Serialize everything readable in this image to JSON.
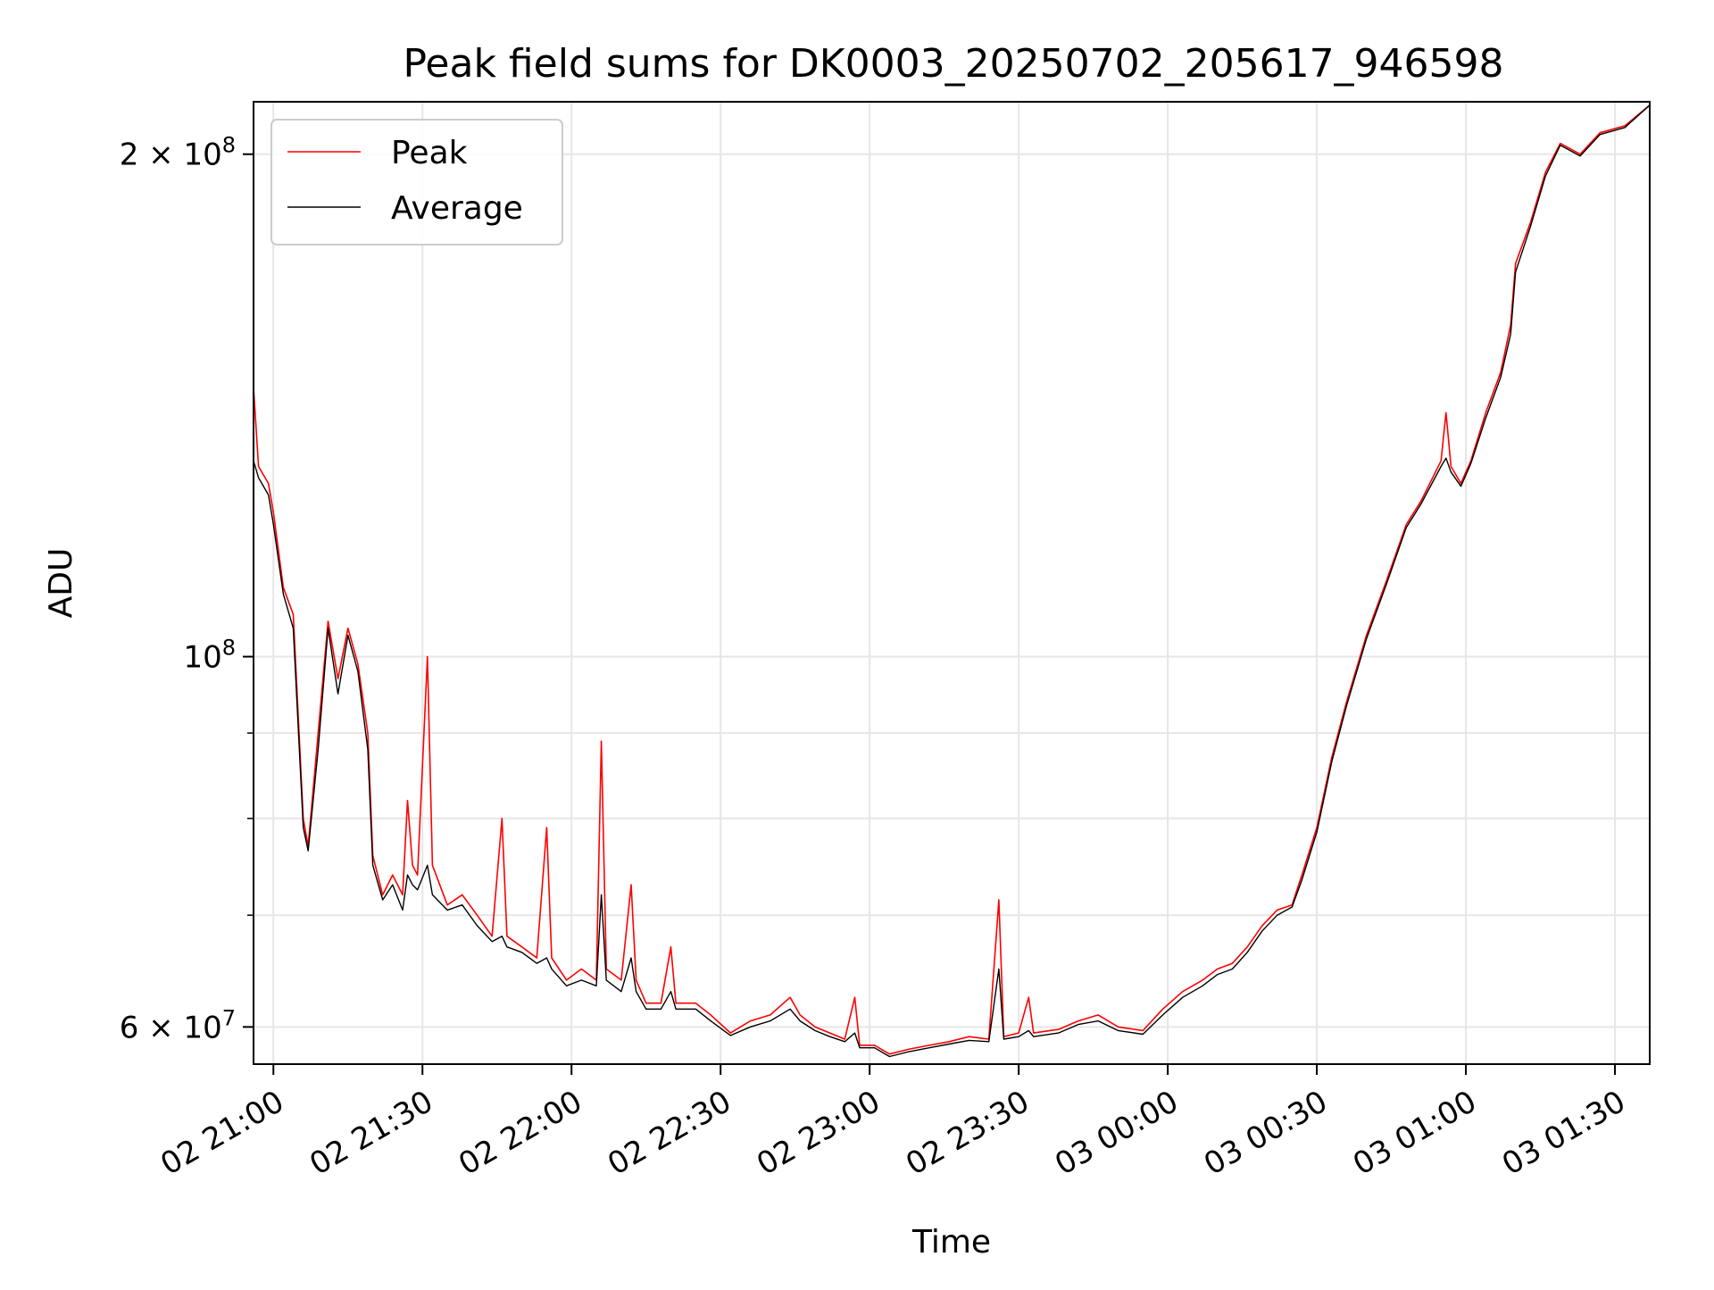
{
  "chart_data": {
    "type": "line",
    "title": "Peak field sums for DK0003_20250702_205617_946598",
    "xlabel": "Time",
    "ylabel": "ADU",
    "yscale": "log",
    "grid": true,
    "legend_position": "top-left",
    "xlim": [
      "2025-07-02 20:56",
      "2025-07-03 01:37"
    ],
    "ylim": [
      57000000,
      215000000
    ],
    "x_ticks": [
      {
        "value": "2025-07-02 21:00",
        "label": "02 21:00"
      },
      {
        "value": "2025-07-02 21:30",
        "label": "02 21:30"
      },
      {
        "value": "2025-07-02 22:00",
        "label": "02 22:00"
      },
      {
        "value": "2025-07-02 22:30",
        "label": "02 22:30"
      },
      {
        "value": "2025-07-02 23:00",
        "label": "02 23:00"
      },
      {
        "value": "2025-07-02 23:30",
        "label": "02 23:30"
      },
      {
        "value": "2025-07-03 00:00",
        "label": "03 00:00"
      },
      {
        "value": "2025-07-03 00:30",
        "label": "03 00:30"
      },
      {
        "value": "2025-07-03 01:00",
        "label": "03 01:00"
      },
      {
        "value": "2025-07-03 01:30",
        "label": "03 01:30"
      }
    ],
    "y_ticks_major": [
      {
        "value": 60000000,
        "mantissa": "6",
        "label": "6 × 10^7"
      },
      {
        "value": 100000000,
        "mantissa": "",
        "label": "10^8"
      },
      {
        "value": 200000000,
        "mantissa": "2",
        "label": "2 × 10^8"
      }
    ],
    "y_ticks_base": "10",
    "y_ticks_major_exponents": [
      "7",
      "8",
      "8"
    ],
    "y_ticks_times": "×",
    "y_ticks_minor": [
      70000000,
      80000000,
      90000000
    ],
    "series": [
      {
        "name": "Peak",
        "color": "#ff0000",
        "points": [
          [
            "2025-07-02 20:56",
            145000000
          ],
          [
            "2025-07-02 20:57",
            130000000
          ],
          [
            "2025-07-02 20:59",
            127000000
          ],
          [
            "2025-07-02 21:00",
            122000000
          ],
          [
            "2025-07-02 21:02",
            110000000
          ],
          [
            "2025-07-02 21:04",
            106000000
          ],
          [
            "2025-07-02 21:06",
            80000000
          ],
          [
            "2025-07-02 21:07",
            77000000
          ],
          [
            "2025-07-02 21:09",
            90000000
          ],
          [
            "2025-07-02 21:11",
            105000000
          ],
          [
            "2025-07-02 21:13",
            97000000
          ],
          [
            "2025-07-02 21:15",
            104000000
          ],
          [
            "2025-07-02 21:17",
            99000000
          ],
          [
            "2025-07-02 21:19",
            90000000
          ],
          [
            "2025-07-02 21:20",
            76000000
          ],
          [
            "2025-07-02 21:22",
            72000000
          ],
          [
            "2025-07-02 21:24",
            74000000
          ],
          [
            "2025-07-02 21:26",
            72000000
          ],
          [
            "2025-07-02 21:27",
            82000000
          ],
          [
            "2025-07-02 21:28",
            75000000
          ],
          [
            "2025-07-02 21:29",
            74000000
          ],
          [
            "2025-07-02 21:31",
            100000000
          ],
          [
            "2025-07-02 21:32",
            75000000
          ],
          [
            "2025-07-02 21:35",
            71000000
          ],
          [
            "2025-07-02 21:38",
            72000000
          ],
          [
            "2025-07-02 21:41",
            70000000
          ],
          [
            "2025-07-02 21:44",
            68000000
          ],
          [
            "2025-07-02 21:46",
            80000000
          ],
          [
            "2025-07-02 21:47",
            68000000
          ],
          [
            "2025-07-02 21:50",
            67000000
          ],
          [
            "2025-07-02 21:53",
            66000000
          ],
          [
            "2025-07-02 21:55",
            79000000
          ],
          [
            "2025-07-02 21:56",
            66000000
          ],
          [
            "2025-07-02 21:59",
            64000000
          ],
          [
            "2025-07-02 22:02",
            65000000
          ],
          [
            "2025-07-02 22:05",
            64000000
          ],
          [
            "2025-07-02 22:06",
            89000000
          ],
          [
            "2025-07-02 22:07",
            65000000
          ],
          [
            "2025-07-02 22:10",
            64000000
          ],
          [
            "2025-07-02 22:12",
            73000000
          ],
          [
            "2025-07-02 22:13",
            64000000
          ],
          [
            "2025-07-02 22:15",
            62000000
          ],
          [
            "2025-07-02 22:18",
            62000000
          ],
          [
            "2025-07-02 22:20",
            67000000
          ],
          [
            "2025-07-02 22:21",
            62000000
          ],
          [
            "2025-07-02 22:25",
            62000000
          ],
          [
            "2025-07-02 22:28",
            61000000
          ],
          [
            "2025-07-02 22:32",
            59500000
          ],
          [
            "2025-07-02 22:36",
            60500000
          ],
          [
            "2025-07-02 22:40",
            61000000
          ],
          [
            "2025-07-02 22:44",
            62500000
          ],
          [
            "2025-07-02 22:46",
            61000000
          ],
          [
            "2025-07-02 22:49",
            60000000
          ],
          [
            "2025-07-02 22:52",
            59500000
          ],
          [
            "2025-07-02 22:55",
            59000000
          ],
          [
            "2025-07-02 22:57",
            62500000
          ],
          [
            "2025-07-02 22:58",
            58500000
          ],
          [
            "2025-07-02 23:01",
            58500000
          ],
          [
            "2025-07-02 23:04",
            57800000
          ],
          [
            "2025-07-02 23:08",
            58200000
          ],
          [
            "2025-07-02 23:12",
            58500000
          ],
          [
            "2025-07-02 23:16",
            58800000
          ],
          [
            "2025-07-02 23:20",
            59200000
          ],
          [
            "2025-07-02 23:24",
            59000000
          ],
          [
            "2025-07-02 23:26",
            71500000
          ],
          [
            "2025-07-02 23:27",
            59200000
          ],
          [
            "2025-07-02 23:30",
            59500000
          ],
          [
            "2025-07-02 23:32",
            62500000
          ],
          [
            "2025-07-02 23:33",
            59500000
          ],
          [
            "2025-07-02 23:38",
            59800000
          ],
          [
            "2025-07-02 23:42",
            60500000
          ],
          [
            "2025-07-02 23:46",
            61000000
          ],
          [
            "2025-07-02 23:50",
            60000000
          ],
          [
            "2025-07-02 23:55",
            59700000
          ],
          [
            "2025-07-02 23:59",
            61500000
          ],
          [
            "2025-07-03 00:03",
            63000000
          ],
          [
            "2025-07-03 00:07",
            64000000
          ],
          [
            "2025-07-03 00:10",
            65000000
          ],
          [
            "2025-07-03 00:13",
            65500000
          ],
          [
            "2025-07-03 00:16",
            67000000
          ],
          [
            "2025-07-03 00:19",
            69000000
          ],
          [
            "2025-07-03 00:22",
            70500000
          ],
          [
            "2025-07-03 00:25",
            71000000
          ],
          [
            "2025-07-03 00:27",
            74000000
          ],
          [
            "2025-07-03 00:30",
            79000000
          ],
          [
            "2025-07-03 00:33",
            87000000
          ],
          [
            "2025-07-03 00:36",
            94000000
          ],
          [
            "2025-07-03 00:40",
            103000000
          ],
          [
            "2025-07-03 00:44",
            111000000
          ],
          [
            "2025-07-03 00:48",
            120000000
          ],
          [
            "2025-07-03 00:51",
            124000000
          ],
          [
            "2025-07-03 00:55",
            131000000
          ],
          [
            "2025-07-03 00:56",
            140000000
          ],
          [
            "2025-07-03 00:57",
            130000000
          ],
          [
            "2025-07-03 00:59",
            127000000
          ],
          [
            "2025-07-03 01:01",
            131000000
          ],
          [
            "2025-07-03 01:04",
            140000000
          ],
          [
            "2025-07-03 01:07",
            148000000
          ],
          [
            "2025-07-03 01:09",
            158000000
          ],
          [
            "2025-07-03 01:10",
            172000000
          ],
          [
            "2025-07-03 01:13",
            182000000
          ],
          [
            "2025-07-03 01:16",
            195000000
          ],
          [
            "2025-07-03 01:19",
            203000000
          ],
          [
            "2025-07-03 01:23",
            200000000
          ],
          [
            "2025-07-03 01:27",
            206000000
          ],
          [
            "2025-07-03 01:32",
            208000000
          ],
          [
            "2025-07-03 01:37",
            214000000
          ]
        ]
      },
      {
        "name": "Average",
        "color": "#000000",
        "points": [
          [
            "2025-07-02 20:56",
            131000000
          ],
          [
            "2025-07-02 20:57",
            128000000
          ],
          [
            "2025-07-02 20:59",
            125000000
          ],
          [
            "2025-07-02 21:00",
            120000000
          ],
          [
            "2025-07-02 21:02",
            109000000
          ],
          [
            "2025-07-02 21:04",
            104000000
          ],
          [
            "2025-07-02 21:06",
            79000000
          ],
          [
            "2025-07-02 21:07",
            76500000
          ],
          [
            "2025-07-02 21:09",
            88000000
          ],
          [
            "2025-07-02 21:11",
            104000000
          ],
          [
            "2025-07-02 21:13",
            95000000
          ],
          [
            "2025-07-02 21:15",
            103000000
          ],
          [
            "2025-07-02 21:17",
            98000000
          ],
          [
            "2025-07-02 21:19",
            88000000
          ],
          [
            "2025-07-02 21:20",
            75000000
          ],
          [
            "2025-07-02 21:22",
            71500000
          ],
          [
            "2025-07-02 21:24",
            73000000
          ],
          [
            "2025-07-02 21:26",
            70500000
          ],
          [
            "2025-07-02 21:27",
            74000000
          ],
          [
            "2025-07-02 21:28",
            73000000
          ],
          [
            "2025-07-02 21:29",
            72500000
          ],
          [
            "2025-07-02 21:31",
            75000000
          ],
          [
            "2025-07-02 21:32",
            72000000
          ],
          [
            "2025-07-02 21:35",
            70500000
          ],
          [
            "2025-07-02 21:38",
            71000000
          ],
          [
            "2025-07-02 21:41",
            69000000
          ],
          [
            "2025-07-02 21:44",
            67500000
          ],
          [
            "2025-07-02 21:46",
            68000000
          ],
          [
            "2025-07-02 21:47",
            67000000
          ],
          [
            "2025-07-02 21:50",
            66500000
          ],
          [
            "2025-07-02 21:53",
            65500000
          ],
          [
            "2025-07-02 21:55",
            66000000
          ],
          [
            "2025-07-02 21:56",
            65000000
          ],
          [
            "2025-07-02 21:59",
            63500000
          ],
          [
            "2025-07-02 22:02",
            64000000
          ],
          [
            "2025-07-02 22:05",
            63500000
          ],
          [
            "2025-07-02 22:06",
            72000000
          ],
          [
            "2025-07-02 22:07",
            64000000
          ],
          [
            "2025-07-02 22:10",
            63000000
          ],
          [
            "2025-07-02 22:12",
            66000000
          ],
          [
            "2025-07-02 22:13",
            63000000
          ],
          [
            "2025-07-02 22:15",
            61500000
          ],
          [
            "2025-07-02 22:18",
            61500000
          ],
          [
            "2025-07-02 22:20",
            63000000
          ],
          [
            "2025-07-02 22:21",
            61500000
          ],
          [
            "2025-07-02 22:25",
            61500000
          ],
          [
            "2025-07-02 22:28",
            60500000
          ],
          [
            "2025-07-02 22:32",
            59300000
          ],
          [
            "2025-07-02 22:36",
            60000000
          ],
          [
            "2025-07-02 22:40",
            60500000
          ],
          [
            "2025-07-02 22:44",
            61500000
          ],
          [
            "2025-07-02 22:46",
            60500000
          ],
          [
            "2025-07-02 22:49",
            59700000
          ],
          [
            "2025-07-02 22:52",
            59200000
          ],
          [
            "2025-07-02 22:55",
            58800000
          ],
          [
            "2025-07-02 22:57",
            59500000
          ],
          [
            "2025-07-02 22:58",
            58300000
          ],
          [
            "2025-07-02 23:01",
            58300000
          ],
          [
            "2025-07-02 23:04",
            57600000
          ],
          [
            "2025-07-02 23:08",
            58000000
          ],
          [
            "2025-07-02 23:12",
            58300000
          ],
          [
            "2025-07-02 23:16",
            58600000
          ],
          [
            "2025-07-02 23:20",
            58900000
          ],
          [
            "2025-07-02 23:24",
            58800000
          ],
          [
            "2025-07-02 23:26",
            65000000
          ],
          [
            "2025-07-02 23:27",
            59000000
          ],
          [
            "2025-07-02 23:30",
            59200000
          ],
          [
            "2025-07-02 23:32",
            59700000
          ],
          [
            "2025-07-02 23:33",
            59200000
          ],
          [
            "2025-07-02 23:38",
            59500000
          ],
          [
            "2025-07-02 23:42",
            60200000
          ],
          [
            "2025-07-02 23:46",
            60500000
          ],
          [
            "2025-07-02 23:50",
            59700000
          ],
          [
            "2025-07-02 23:55",
            59400000
          ],
          [
            "2025-07-02 23:59",
            61000000
          ],
          [
            "2025-07-03 00:03",
            62500000
          ],
          [
            "2025-07-03 00:07",
            63500000
          ],
          [
            "2025-07-03 00:10",
            64500000
          ],
          [
            "2025-07-03 00:13",
            65000000
          ],
          [
            "2025-07-03 00:16",
            66500000
          ],
          [
            "2025-07-03 00:19",
            68500000
          ],
          [
            "2025-07-03 00:22",
            70000000
          ],
          [
            "2025-07-03 00:25",
            70800000
          ],
          [
            "2025-07-03 00:27",
            73500000
          ],
          [
            "2025-07-03 00:30",
            78500000
          ],
          [
            "2025-07-03 00:33",
            86500000
          ],
          [
            "2025-07-03 00:36",
            93500000
          ],
          [
            "2025-07-03 00:40",
            102500000
          ],
          [
            "2025-07-03 00:44",
            110500000
          ],
          [
            "2025-07-03 00:48",
            119500000
          ],
          [
            "2025-07-03 00:51",
            123500000
          ],
          [
            "2025-07-03 00:55",
            130000000
          ],
          [
            "2025-07-03 00:56",
            131500000
          ],
          [
            "2025-07-03 00:57",
            129000000
          ],
          [
            "2025-07-03 00:59",
            126500000
          ],
          [
            "2025-07-03 01:01",
            130500000
          ],
          [
            "2025-07-03 01:04",
            139000000
          ],
          [
            "2025-07-03 01:07",
            147000000
          ],
          [
            "2025-07-03 01:09",
            156000000
          ],
          [
            "2025-07-03 01:10",
            170000000
          ],
          [
            "2025-07-03 01:13",
            181000000
          ],
          [
            "2025-07-03 01:16",
            194000000
          ],
          [
            "2025-07-03 01:19",
            202500000
          ],
          [
            "2025-07-03 01:23",
            199500000
          ],
          [
            "2025-07-03 01:27",
            205500000
          ],
          [
            "2025-07-03 01:32",
            207500000
          ],
          [
            "2025-07-03 01:37",
            214000000
          ]
        ]
      }
    ]
  }
}
